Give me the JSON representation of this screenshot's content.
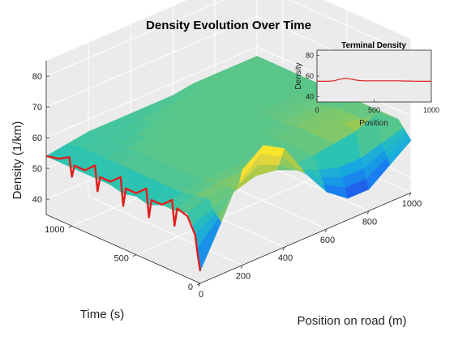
{
  "chart_data": [
    {
      "type": "surface",
      "title": "Density Evolution Over Time",
      "xlabel": "Position on road (m)",
      "ylabel": "Time (s)",
      "zlabel": "Density (1/km)",
      "x_ticks": [
        "0",
        "200",
        "400",
        "600",
        "800",
        "1000"
      ],
      "y_ticks": [
        "0",
        "500",
        "1000"
      ],
      "z_ticks": [
        "40",
        "50",
        "60",
        "70",
        "80"
      ],
      "xlim": [
        0,
        1000
      ],
      "ylim": [
        0,
        1200
      ],
      "zlim": [
        35,
        85
      ],
      "grid": true,
      "colormap": [
        "#3e26a8",
        "#1b6ef6",
        "#17a9e0",
        "#2ec4b0",
        "#a7c94a",
        "#f9d93a",
        "#f9fb0e"
      ],
      "edge_curve_color": "#e01e1e",
      "x_position_samples": [
        0,
        100,
        200,
        300,
        400,
        500,
        600,
        700,
        800,
        900,
        1000
      ],
      "y_time_samples": [
        0,
        20,
        40,
        60,
        100,
        200,
        300,
        400,
        500,
        600,
        700,
        800,
        900,
        1000,
        1100,
        1200
      ],
      "z_density": [
        [
          39,
          52,
          66,
          71,
          67,
          56,
          47,
          42,
          42,
          47,
          52
        ],
        [
          46,
          53,
          62,
          68,
          64,
          56,
          49,
          45,
          45,
          49,
          53
        ],
        [
          50,
          54,
          60,
          64,
          61,
          56,
          51,
          48,
          48,
          51,
          54
        ],
        [
          53,
          55,
          58,
          60,
          59,
          56,
          53,
          51,
          51,
          53,
          55
        ],
        [
          56,
          58,
          59,
          59,
          58,
          57,
          57,
          58,
          59,
          62,
          57
        ],
        [
          55,
          57,
          58,
          58,
          58,
          57,
          57,
          58,
          60,
          58,
          57
        ],
        [
          55,
          56,
          57,
          57,
          57,
          57,
          57,
          58,
          59,
          58,
          57
        ],
        [
          53,
          56,
          57,
          57,
          57,
          57,
          57,
          58,
          59,
          58,
          57
        ],
        [
          54,
          56,
          57,
          57,
          57,
          57,
          57,
          57,
          58,
          57,
          57
        ],
        [
          53,
          56,
          57,
          57,
          57,
          57,
          57,
          57,
          58,
          57,
          57
        ],
        [
          54,
          56,
          57,
          57,
          57,
          57,
          57,
          57,
          57,
          57,
          57
        ],
        [
          54,
          56,
          57,
          57,
          57,
          57,
          57,
          57,
          57,
          57,
          57
        ],
        [
          54,
          56,
          56,
          57,
          57,
          57,
          57,
          57,
          57,
          57,
          57
        ],
        [
          54,
          56,
          56,
          56,
          57,
          57,
          57,
          57,
          57,
          57,
          57
        ],
        [
          54,
          56,
          56,
          56,
          56,
          57,
          57,
          57,
          57,
          57,
          57
        ],
        [
          54,
          55,
          56,
          56,
          56,
          56,
          56,
          57,
          57,
          57,
          57
        ]
      ],
      "edge_curve": {
        "x": 0,
        "t": [
          0,
          20,
          40,
          100,
          180,
          200,
          220,
          300,
          380,
          400,
          420,
          500,
          580,
          600,
          620,
          700,
          780,
          800,
          820,
          900,
          980,
          1000,
          1020,
          1100,
          1200
        ],
        "density": [
          39,
          44,
          50,
          55,
          56,
          50,
          58,
          55,
          55,
          49,
          58,
          55,
          55,
          49,
          58,
          55,
          55,
          50,
          58,
          55,
          55,
          51,
          57,
          55,
          54
        ]
      }
    },
    {
      "type": "line",
      "title": "Terminal Density",
      "xlabel": "Position",
      "ylabel": "Density",
      "x_ticks": [
        "0",
        "500",
        "1000"
      ],
      "y_ticks": [
        "40",
        "60",
        "80"
      ],
      "xlim": [
        0,
        1000
      ],
      "ylim": [
        35,
        85
      ],
      "grid": false,
      "series_color": "#e01e1e",
      "x": [
        0,
        50,
        100,
        150,
        200,
        250,
        300,
        350,
        400,
        450,
        500,
        550,
        600,
        650,
        700,
        750,
        800,
        850,
        900,
        950,
        1000
      ],
      "values": [
        55,
        55,
        55,
        55.5,
        57,
        58,
        57,
        56,
        55.5,
        55.5,
        55.5,
        55.5,
        55.5,
        55.5,
        55.5,
        55.3,
        55.2,
        55.1,
        55,
        55,
        55
      ]
    }
  ]
}
